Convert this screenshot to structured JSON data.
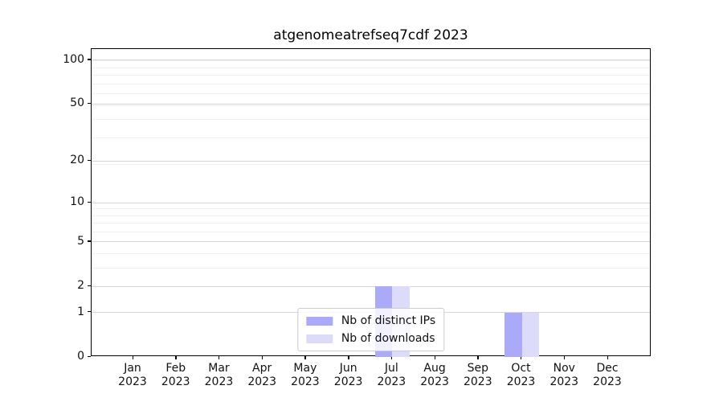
{
  "chart_data": {
    "type": "bar",
    "title": "atgenomeatrefseq7cdf 2023",
    "categories": [
      "Jan 2023",
      "Feb 2023",
      "Mar 2023",
      "Apr 2023",
      "May 2023",
      "Jun 2023",
      "Jul 2023",
      "Aug 2023",
      "Sep 2023",
      "Oct 2023",
      "Nov 2023",
      "Dec 2023"
    ],
    "x_tick_labels": [
      {
        "month": "Jan",
        "year": "2023"
      },
      {
        "month": "Feb",
        "year": "2023"
      },
      {
        "month": "Mar",
        "year": "2023"
      },
      {
        "month": "Apr",
        "year": "2023"
      },
      {
        "month": "May",
        "year": "2023"
      },
      {
        "month": "Jun",
        "year": "2023"
      },
      {
        "month": "Jul",
        "year": "2023"
      },
      {
        "month": "Aug",
        "year": "2023"
      },
      {
        "month": "Sep",
        "year": "2023"
      },
      {
        "month": "Oct",
        "year": "2023"
      },
      {
        "month": "Nov",
        "year": "2023"
      },
      {
        "month": "Dec",
        "year": "2023"
      }
    ],
    "series": [
      {
        "name": "Nb of distinct IPs",
        "color": "#aaaaf8",
        "values": [
          0,
          0,
          0,
          0,
          0,
          0,
          2,
          0,
          0,
          1,
          0,
          0
        ]
      },
      {
        "name": "Nb of downloads",
        "color": "#dcdcfa",
        "values": [
          0,
          0,
          0,
          0,
          0,
          0,
          2,
          0,
          0,
          1,
          0,
          0
        ]
      }
    ],
    "yscale": "log10(value+1)",
    "ylim": [
      0,
      119
    ],
    "yticks": [
      100,
      50,
      20,
      10,
      5,
      2,
      1,
      0
    ],
    "minor_grid_values": [
      1,
      2,
      3,
      4,
      5,
      6,
      7,
      8,
      9,
      19,
      29,
      39,
      49,
      59,
      69,
      79,
      89,
      99
    ],
    "xlabel": "",
    "ylabel": "",
    "grid": "horizontal",
    "legend_position": "lower center"
  },
  "legend": {
    "items": [
      {
        "label": "Nb of distinct IPs",
        "color": "#aaaaf8"
      },
      {
        "label": "Nb of downloads",
        "color": "#dcdcfa"
      }
    ]
  },
  "colors": {
    "bar_distinct_ips": "#aaaaf8",
    "bar_downloads": "#dcdcfa",
    "major_grid": "#d6d6d6",
    "minor_grid": "#f0f0f0",
    "spine": "#000000",
    "text": "#111111",
    "legend_border": "#cccccc"
  }
}
